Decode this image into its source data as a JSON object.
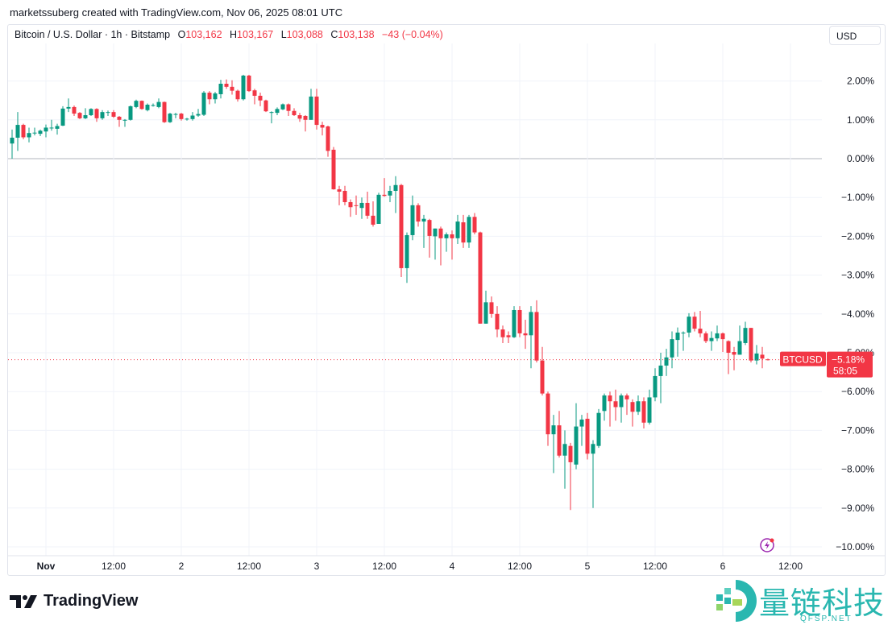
{
  "credit": "marketssuberg created with TradingView.com, Nov 06, 2025 08:01 UTC",
  "legend": {
    "symbol": "Bitcoin / U.S. Dollar · 1h · Bitstamp",
    "o_label": "O",
    "o": "103,162",
    "h_label": "H",
    "h": "103,167",
    "l_label": "L",
    "l": "103,088",
    "c_label": "C",
    "c": "103,138",
    "change": "−43 (−0.04%)"
  },
  "currency_button": "USD",
  "price_tag": {
    "symbol": "BTCUSD",
    "value": "−5.18%",
    "countdown": "58:05"
  },
  "footer": {
    "brand": "TradingView",
    "watermark": "量链科技",
    "watermark_sub": "QFSP.NET"
  },
  "colors": {
    "up": "#089981",
    "down": "#f23645",
    "grid": "#f0f3fa",
    "baseline": "#b2b5be"
  },
  "chart_data": {
    "type": "candlestick",
    "interval": "1h",
    "ylabel_unit": "%",
    "ylim": [
      -10.4,
      3.0
    ],
    "grid": true,
    "y_ticks": [
      "2.00%",
      "1.00%",
      "0.00%",
      "−1.00%",
      "−2.00%",
      "−3.00%",
      "−4.00%",
      "−5.00%",
      "−6.00%",
      "−7.00%",
      "−8.00%",
      "−9.00%",
      "−10.00%"
    ],
    "y_tick_values": [
      2,
      1,
      0,
      -1,
      -2,
      -3,
      -4,
      -5,
      -6,
      -7,
      -8,
      -9,
      -10
    ],
    "x_ticks": [
      {
        "label": "Nov",
        "t": "11-01 00:00"
      },
      {
        "label": "12:00",
        "t": "11-01 12:00"
      },
      {
        "label": "2",
        "t": "11-02 00:00"
      },
      {
        "label": "12:00",
        "t": "11-02 12:00"
      },
      {
        "label": "3",
        "t": "11-03 00:00"
      },
      {
        "label": "12:00",
        "t": "11-03 12:00"
      },
      {
        "label": "4",
        "t": "11-04 00:00"
      },
      {
        "label": "12:00",
        "t": "11-04 12:00"
      },
      {
        "label": "5",
        "t": "11-05 00:00"
      },
      {
        "label": "12:00",
        "t": "11-05 12:00"
      },
      {
        "label": "6",
        "t": "11-06 00:00"
      },
      {
        "label": "12:00",
        "t": "11-06 12:00"
      }
    ],
    "last_value": -5.18,
    "candles_fields": [
      "time",
      "open",
      "high",
      "low",
      "close"
    ],
    "candles": [
      [
        "10-31 18:00",
        0.39,
        0.75,
        0.0,
        0.54
      ],
      [
        "10-31 19:00",
        0.54,
        1.2,
        0.2,
        0.87
      ],
      [
        "10-31 20:00",
        0.87,
        0.9,
        0.5,
        0.55
      ],
      [
        "10-31 21:00",
        0.55,
        0.8,
        0.42,
        0.66
      ],
      [
        "10-31 22:00",
        0.66,
        0.8,
        0.6,
        0.67
      ],
      [
        "10-31 23:00",
        0.64,
        0.75,
        0.58,
        0.72
      ],
      [
        "11-01 00:00",
        0.7,
        0.88,
        0.55,
        0.8
      ],
      [
        "11-01 01:00",
        0.8,
        1.0,
        0.72,
        0.8
      ],
      [
        "11-01 02:00",
        0.77,
        0.9,
        0.62,
        0.84
      ],
      [
        "11-01 03:00",
        0.85,
        1.35,
        0.84,
        1.29
      ],
      [
        "11-01 04:00",
        1.29,
        1.55,
        1.2,
        1.33
      ],
      [
        "11-01 05:00",
        1.33,
        1.37,
        1.1,
        1.16
      ],
      [
        "11-01 06:00",
        1.18,
        1.2,
        1.02,
        1.04
      ],
      [
        "11-01 07:00",
        1.04,
        1.3,
        1.02,
        1.12
      ],
      [
        "11-01 08:00",
        1.12,
        1.3,
        1.1,
        1.28
      ],
      [
        "11-01 09:00",
        1.28,
        1.3,
        0.95,
        1.04
      ],
      [
        "11-01 10:00",
        1.04,
        1.25,
        1.0,
        1.2
      ],
      [
        "11-01 11:00",
        1.2,
        1.24,
        1.1,
        1.2
      ],
      [
        "11-01 12:00",
        1.2,
        1.25,
        1.05,
        1.08
      ],
      [
        "11-01 13:00",
        1.08,
        1.1,
        0.82,
        1.0
      ],
      [
        "11-01 14:00",
        1.0,
        1.02,
        0.82,
        1.0
      ],
      [
        "11-01 15:00",
        1.0,
        1.37,
        0.98,
        1.35
      ],
      [
        "11-01 16:00",
        1.33,
        1.52,
        1.3,
        1.49
      ],
      [
        "11-01 17:00",
        1.49,
        1.5,
        1.26,
        1.28
      ],
      [
        "11-01 18:00",
        1.25,
        1.42,
        1.22,
        1.39
      ],
      [
        "11-01 19:00",
        1.38,
        1.42,
        1.34,
        1.38
      ],
      [
        "11-01 20:00",
        1.33,
        1.55,
        1.3,
        1.46
      ],
      [
        "11-01 21:00",
        1.46,
        1.47,
        0.92,
        0.94
      ],
      [
        "11-01 22:00",
        0.94,
        1.18,
        0.92,
        1.16
      ],
      [
        "11-01 23:00",
        1.15,
        1.18,
        1.04,
        1.15
      ],
      [
        "11-02 00:00",
        1.16,
        1.18,
        0.98,
        1.02
      ],
      [
        "11-02 01:00",
        1.03,
        1.05,
        0.98,
        1.03
      ],
      [
        "11-02 02:00",
        1.02,
        1.2,
        0.98,
        1.11
      ],
      [
        "11-02 03:00",
        1.11,
        1.28,
        1.08,
        1.15
      ],
      [
        "11-02 04:00",
        1.13,
        1.74,
        1.1,
        1.7
      ],
      [
        "11-02 05:00",
        1.7,
        1.74,
        1.4,
        1.53
      ],
      [
        "11-02 06:00",
        1.53,
        1.72,
        1.42,
        1.68
      ],
      [
        "11-02 07:00",
        1.66,
        2.03,
        1.55,
        1.93
      ],
      [
        "11-02 08:00",
        1.93,
        2.04,
        1.8,
        1.85
      ],
      [
        "11-02 09:00",
        1.85,
        2.02,
        1.65,
        1.75
      ],
      [
        "11-02 10:00",
        1.75,
        1.78,
        1.47,
        1.53
      ],
      [
        "11-02 11:00",
        1.53,
        2.16,
        1.5,
        2.14
      ],
      [
        "11-02 12:00",
        2.14,
        2.16,
        1.72,
        1.74
      ],
      [
        "11-02 13:00",
        1.76,
        1.8,
        1.4,
        1.62
      ],
      [
        "11-02 14:00",
        1.62,
        1.7,
        1.35,
        1.5
      ],
      [
        "11-02 15:00",
        1.5,
        1.52,
        1.2,
        1.22
      ],
      [
        "11-02 16:00",
        1.2,
        1.22,
        0.91,
        1.2
      ],
      [
        "11-02 17:00",
        1.18,
        1.32,
        1.12,
        1.28
      ],
      [
        "11-02 18:00",
        1.27,
        1.42,
        1.25,
        1.4
      ],
      [
        "11-02 19:00",
        1.4,
        1.42,
        1.1,
        1.23
      ],
      [
        "11-02 20:00",
        1.23,
        1.3,
        1.1,
        1.12
      ],
      [
        "11-02 21:00",
        1.12,
        1.18,
        0.95,
        1.03
      ],
      [
        "11-02 22:00",
        1.1,
        1.12,
        0.7,
        1.0
      ],
      [
        "11-02 23:00",
        1.0,
        1.8,
        1.0,
        1.6
      ],
      [
        "11-03 00:00",
        1.6,
        1.8,
        0.75,
        0.87
      ],
      [
        "11-03 01:00",
        0.87,
        0.95,
        0.6,
        0.8
      ],
      [
        "11-03 02:00",
        0.83,
        0.85,
        0.05,
        0.2
      ],
      [
        "11-03 03:00",
        0.23,
        0.3,
        -0.8,
        -0.79
      ],
      [
        "11-03 04:00",
        -0.79,
        -0.7,
        -1.2,
        -0.85
      ],
      [
        "11-03 05:00",
        -0.83,
        -0.7,
        -1.2,
        -1.12
      ],
      [
        "11-03 06:00",
        -1.12,
        -1.05,
        -1.5,
        -1.25
      ],
      [
        "11-03 07:00",
        -1.2,
        -0.95,
        -1.45,
        -1.22
      ],
      [
        "11-03 08:00",
        -1.27,
        -1.0,
        -1.55,
        -1.14
      ],
      [
        "11-03 09:00",
        -1.14,
        -0.85,
        -1.55,
        -1.47
      ],
      [
        "11-03 10:00",
        -1.47,
        -1.1,
        -1.75,
        -1.7
      ],
      [
        "11-03 11:00",
        -1.68,
        -0.88,
        -1.68,
        -0.93
      ],
      [
        "11-03 12:00",
        -0.93,
        -0.5,
        -0.98,
        -0.96
      ],
      [
        "11-03 13:00",
        -0.95,
        -0.7,
        -1.12,
        -0.83
      ],
      [
        "11-03 14:00",
        -0.83,
        -0.45,
        -1.4,
        -0.68
      ],
      [
        "11-03 15:00",
        -0.68,
        -0.65,
        -3.05,
        -2.82
      ],
      [
        "11-03 16:00",
        -2.82,
        -1.9,
        -3.2,
        -1.97
      ],
      [
        "11-03 17:00",
        -1.97,
        -0.95,
        -2.1,
        -1.2
      ],
      [
        "11-03 18:00",
        -1.2,
        -1.15,
        -1.75,
        -1.62
      ],
      [
        "11-03 19:00",
        -1.62,
        -1.45,
        -2.3,
        -1.55
      ],
      [
        "11-03 20:00",
        -1.58,
        -1.55,
        -2.55,
        -1.99
      ],
      [
        "11-03 21:00",
        -2.0,
        -1.8,
        -2.6,
        -1.8
      ],
      [
        "11-03 22:00",
        -1.8,
        -1.75,
        -2.75,
        -2.05
      ],
      [
        "11-03 23:00",
        -2.05,
        -1.9,
        -2.4,
        -1.95
      ],
      [
        "11-04 00:00",
        -1.95,
        -1.85,
        -2.6,
        -2.05
      ],
      [
        "11-04 01:00",
        -2.05,
        -1.45,
        -2.2,
        -1.62
      ],
      [
        "11-04 02:00",
        -1.64,
        -1.45,
        -2.3,
        -2.16
      ],
      [
        "11-04 03:00",
        -2.16,
        -1.45,
        -2.3,
        -1.5
      ],
      [
        "11-04 04:00",
        -1.5,
        -1.4,
        -1.95,
        -1.9
      ],
      [
        "11-04 05:00",
        -1.9,
        -1.88,
        -4.25,
        -4.25
      ],
      [
        "11-04 06:00",
        -4.25,
        -3.4,
        -4.25,
        -3.7
      ],
      [
        "11-04 07:00",
        -3.7,
        -3.55,
        -4.1,
        -4.0
      ],
      [
        "11-04 08:00",
        -4.0,
        -3.8,
        -4.6,
        -4.4
      ],
      [
        "11-04 09:00",
        -4.4,
        -4.3,
        -4.75,
        -4.6
      ],
      [
        "11-04 10:00",
        -4.55,
        -4.45,
        -4.75,
        -4.6
      ],
      [
        "11-04 11:00",
        -4.6,
        -3.8,
        -4.62,
        -3.9
      ],
      [
        "11-04 12:00",
        -3.9,
        -3.8,
        -4.6,
        -4.5
      ],
      [
        "11-04 13:00",
        -4.5,
        -4.15,
        -4.9,
        -4.55
      ],
      [
        "11-04 14:00",
        -4.55,
        -3.8,
        -5.4,
        -3.95
      ],
      [
        "11-04 15:00",
        -3.95,
        -3.65,
        -5.25,
        -5.2
      ],
      [
        "11-04 16:00",
        -5.2,
        -4.85,
        -6.1,
        -6.05
      ],
      [
        "11-04 17:00",
        -6.05,
        -6.0,
        -7.4,
        -7.1
      ],
      [
        "11-04 18:00",
        -7.1,
        -6.6,
        -8.1,
        -6.87
      ],
      [
        "11-04 19:00",
        -6.87,
        -6.5,
        -7.7,
        -7.65
      ],
      [
        "11-04 20:00",
        -7.65,
        -7.0,
        -8.5,
        -7.35
      ],
      [
        "11-04 21:00",
        -7.4,
        -7.32,
        -9.05,
        -7.82
      ],
      [
        "11-04 22:00",
        -7.88,
        -6.3,
        -8.0,
        -6.9
      ],
      [
        "11-04 23:00",
        -6.9,
        -6.6,
        -7.4,
        -6.72
      ],
      [
        "11-05 00:00",
        -6.7,
        -6.55,
        -7.75,
        -7.6
      ],
      [
        "11-05 01:00",
        -7.6,
        -7.25,
        -9.0,
        -7.35
      ],
      [
        "11-05 02:00",
        -7.4,
        -6.45,
        -7.45,
        -6.55
      ],
      [
        "11-05 03:00",
        -6.5,
        -6.05,
        -6.75,
        -6.1
      ],
      [
        "11-05 04:00",
        -6.1,
        -6.0,
        -6.9,
        -6.25
      ],
      [
        "11-05 05:00",
        -6.25,
        -5.95,
        -6.75,
        -6.4
      ],
      [
        "11-05 06:00",
        -6.4,
        -6.05,
        -6.8,
        -6.1
      ],
      [
        "11-05 07:00",
        -6.1,
        -6.05,
        -6.6,
        -6.2
      ],
      [
        "11-05 08:00",
        -6.27,
        -6.2,
        -6.9,
        -6.52
      ],
      [
        "11-05 09:00",
        -6.52,
        -6.1,
        -6.6,
        -6.25
      ],
      [
        "11-05 10:00",
        -6.25,
        -6.15,
        -6.95,
        -6.8
      ],
      [
        "11-05 11:00",
        -6.8,
        -5.95,
        -6.85,
        -6.15
      ],
      [
        "11-05 12:00",
        -6.15,
        -5.4,
        -6.25,
        -5.6
      ],
      [
        "11-05 13:00",
        -5.6,
        -5.0,
        -6.3,
        -5.33
      ],
      [
        "11-05 14:00",
        -5.33,
        -4.9,
        -5.6,
        -5.12
      ],
      [
        "11-05 15:00",
        -5.12,
        -4.45,
        -5.4,
        -4.65
      ],
      [
        "11-05 16:00",
        -4.67,
        -4.35,
        -5.1,
        -4.48
      ],
      [
        "11-05 17:00",
        -4.48,
        -4.45,
        -4.95,
        -4.48
      ],
      [
        "11-05 18:00",
        -4.48,
        -3.98,
        -4.6,
        -4.07
      ],
      [
        "11-05 19:00",
        -4.07,
        -3.95,
        -4.45,
        -4.38
      ],
      [
        "11-05 20:00",
        -4.38,
        -3.92,
        -4.6,
        -4.5
      ],
      [
        "11-05 21:00",
        -4.5,
        -4.45,
        -4.75,
        -4.7
      ],
      [
        "11-05 22:00",
        -4.7,
        -4.45,
        -4.95,
        -4.62
      ],
      [
        "11-05 23:00",
        -4.63,
        -4.3,
        -4.7,
        -4.5
      ],
      [
        "11-06 00:00",
        -4.5,
        -4.48,
        -4.98,
        -4.65
      ],
      [
        "11-06 01:00",
        -4.7,
        -4.68,
        -5.55,
        -5.0
      ],
      [
        "11-06 02:00",
        -4.98,
        -4.85,
        -5.45,
        -5.05
      ],
      [
        "11-06 03:00",
        -5.05,
        -4.3,
        -5.05,
        -4.7
      ],
      [
        "11-06 04:00",
        -4.75,
        -4.2,
        -4.8,
        -4.36
      ],
      [
        "11-06 05:00",
        -4.36,
        -4.36,
        -5.25,
        -5.2
      ],
      [
        "11-06 06:00",
        -5.2,
        -4.8,
        -5.3,
        -5.02
      ],
      [
        "11-06 07:00",
        -5.05,
        -4.85,
        -5.4,
        -5.15
      ],
      [
        "11-06 08:00",
        -5.17,
        -5.15,
        -5.2,
        -5.18
      ]
    ]
  }
}
